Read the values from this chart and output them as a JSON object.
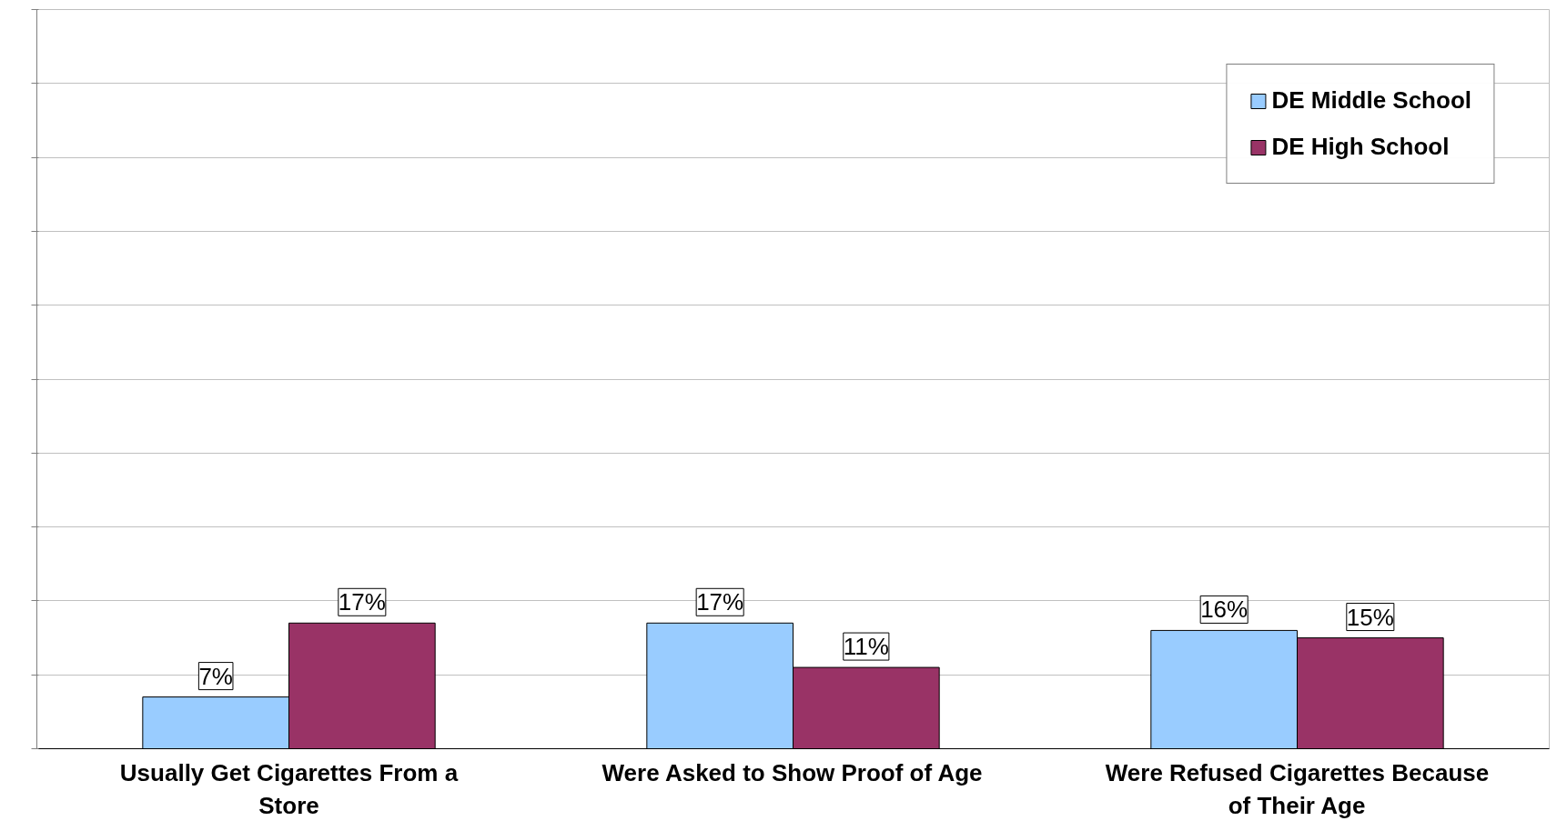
{
  "chart_data": {
    "type": "bar",
    "categories": [
      "Usually Get Cigarettes From a Store",
      "Were Asked to Show Proof of Age",
      "Were Refused Cigarettes Because of Their Age"
    ],
    "series": [
      {
        "name": "DE Middle School",
        "color": "#99ccff",
        "values": [
          7,
          17,
          16
        ],
        "value_labels": [
          "7%",
          "17%",
          "16%"
        ]
      },
      {
        "name": "DE High School",
        "color": "#993366",
        "values": [
          17,
          11,
          15
        ],
        "value_labels": [
          "17%",
          "11%",
          "15%"
        ]
      }
    ],
    "ylim": [
      0,
      100
    ],
    "yticks": [
      {
        "value": 0,
        "label": null
      },
      {
        "value": 10,
        "label": null
      },
      {
        "value": 20,
        "label": null
      },
      {
        "value": 30,
        "label": null
      },
      {
        "value": 40,
        "label": null
      },
      {
        "value": 50,
        "label": null
      },
      {
        "value": 60,
        "label": null
      },
      {
        "value": 70,
        "label": null
      },
      {
        "value": 80,
        "label": null
      },
      {
        "value": 90,
        "label": null
      },
      {
        "value": 100,
        "label": null
      }
    ],
    "tick_labels": "x",
    "grid": "y",
    "legend": "top right"
  }
}
